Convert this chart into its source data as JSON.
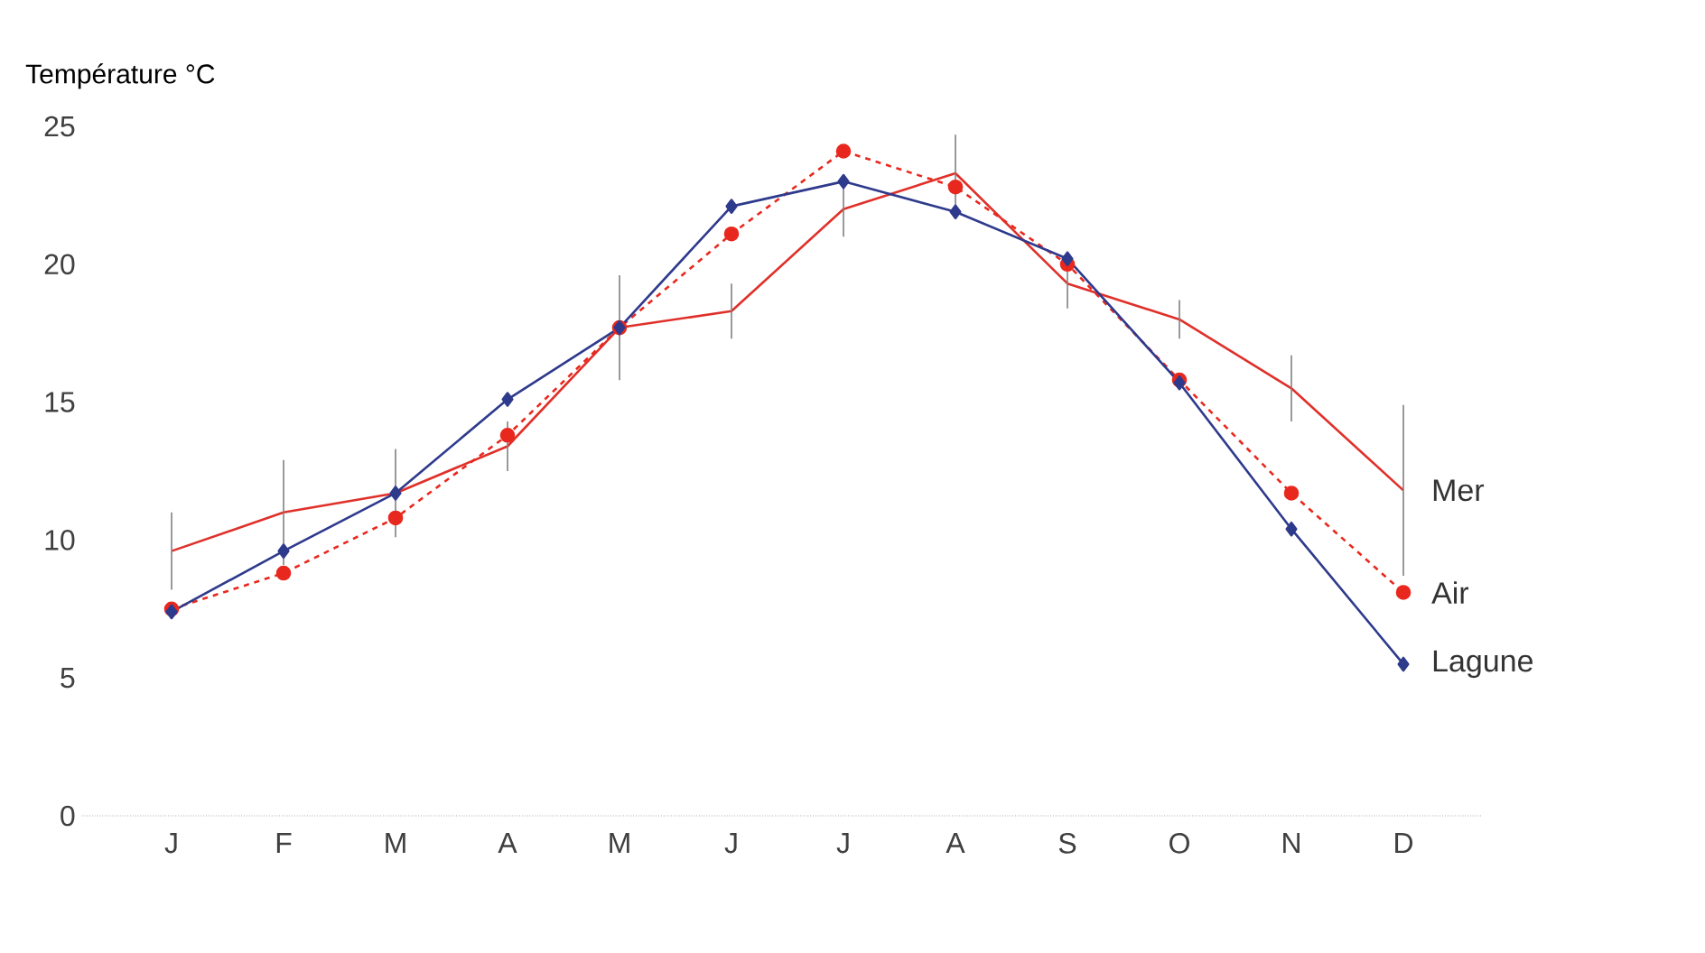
{
  "chart_data": {
    "type": "line",
    "ylabel": "Température °C",
    "categories": [
      "J",
      "F",
      "M",
      "A",
      "M",
      "J",
      "J",
      "A",
      "S",
      "O",
      "N",
      "D"
    ],
    "ylim": [
      0,
      25
    ],
    "yticks": [
      0,
      5,
      10,
      15,
      20,
      25
    ],
    "legend": false,
    "grid": false,
    "series": [
      {
        "name": "Mer",
        "color": "#e0302a",
        "line_style": "solid",
        "marker": "none",
        "values": [
          9.6,
          11.0,
          11.7,
          13.4,
          17.7,
          18.3,
          22.0,
          23.3,
          19.3,
          18.0,
          15.5,
          11.8
        ],
        "errors": [
          1.4,
          1.9,
          1.6,
          0.9,
          1.9,
          1.0,
          1.0,
          1.4,
          0.9,
          0.7,
          1.2,
          3.1
        ]
      },
      {
        "name": "Air",
        "color": "#e8281e",
        "line_style": "dashed",
        "marker": "circle",
        "values": [
          7.5,
          8.8,
          10.8,
          13.8,
          17.7,
          21.1,
          24.1,
          22.8,
          20.0,
          15.8,
          11.7,
          8.1
        ]
      },
      {
        "name": "Lagune",
        "color": "#2e3a8c",
        "line_style": "solid",
        "marker": "diamond",
        "values": [
          7.4,
          9.6,
          11.7,
          15.1,
          17.7,
          22.1,
          23.0,
          21.9,
          20.2,
          15.7,
          10.4,
          5.5
        ]
      }
    ]
  }
}
